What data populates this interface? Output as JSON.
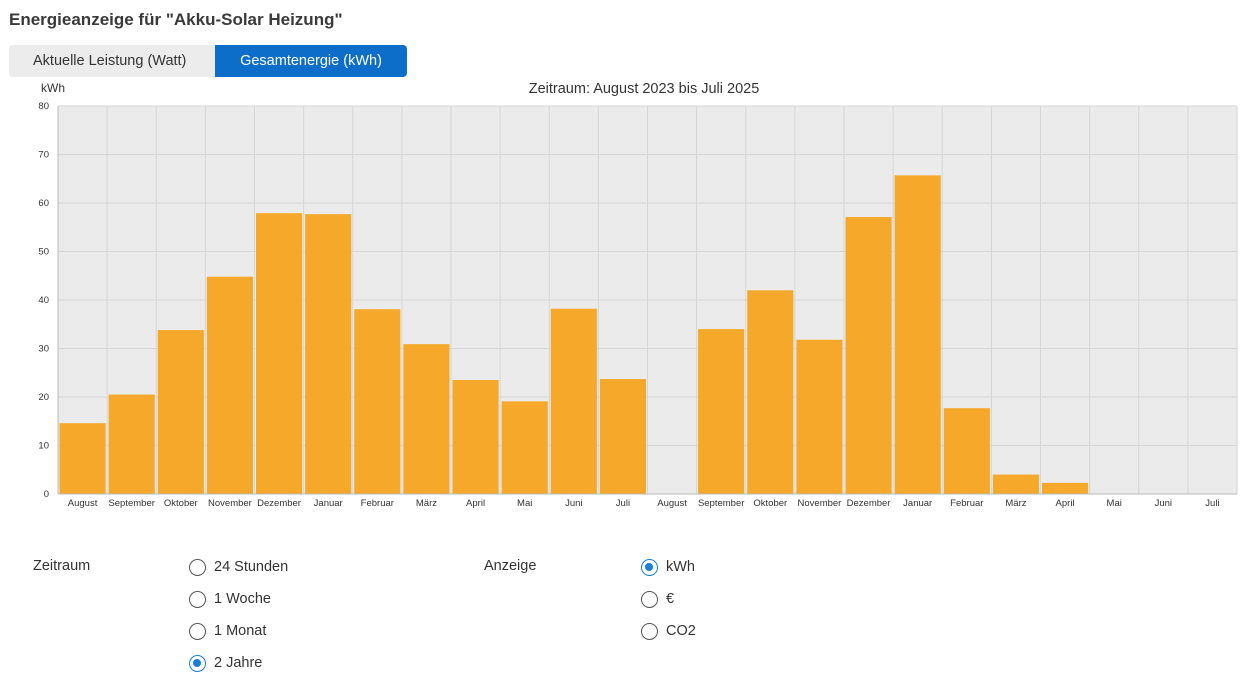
{
  "page": {
    "title": "Energieanzeige für \"Akku-Solar Heizung\""
  },
  "tabs": [
    {
      "label": "Aktuelle Leistung (Watt)",
      "active": false
    },
    {
      "label": "Gesamtenergie (kWh)",
      "active": true
    }
  ],
  "chart_data": {
    "type": "bar",
    "title": "Zeitraum: August 2023 bis Juli 2025",
    "ylabel": "kWh",
    "xlabel": "",
    "ylim": [
      0,
      80
    ],
    "yticks": [
      0,
      10,
      20,
      30,
      40,
      50,
      60,
      70,
      80
    ],
    "grid": true,
    "legend": "none",
    "bar_color": "#f5a82a",
    "categories": [
      "August",
      "September",
      "Oktober",
      "November",
      "Dezember",
      "Januar",
      "Februar",
      "März",
      "April",
      "Mai",
      "Juni",
      "Juli",
      "August",
      "September",
      "Oktober",
      "November",
      "Dezember",
      "Januar",
      "Februar",
      "März",
      "April",
      "Mai",
      "Juni",
      "Juli"
    ],
    "values": [
      14.6,
      20.5,
      33.8,
      44.8,
      57.9,
      57.7,
      38.1,
      30.9,
      23.5,
      19.1,
      38.2,
      23.7,
      0,
      34.0,
      42.0,
      31.8,
      57.1,
      65.7,
      17.7,
      4.0,
      2.3,
      0,
      0,
      0
    ]
  },
  "controls": {
    "zeitraum": {
      "label": "Zeitraum",
      "options": [
        {
          "label": "24 Stunden",
          "checked": false
        },
        {
          "label": "1 Woche",
          "checked": false
        },
        {
          "label": "1 Monat",
          "checked": false
        },
        {
          "label": "2 Jahre",
          "checked": true
        }
      ]
    },
    "anzeige": {
      "label": "Anzeige",
      "options": [
        {
          "label": "kWh",
          "checked": true
        },
        {
          "label": "€",
          "checked": false
        },
        {
          "label": "CO2",
          "checked": false
        }
      ]
    }
  },
  "colors": {
    "accent": "#0d6ec9",
    "bar": "#f5a82a",
    "radio_checked": "#1a7fd6"
  }
}
